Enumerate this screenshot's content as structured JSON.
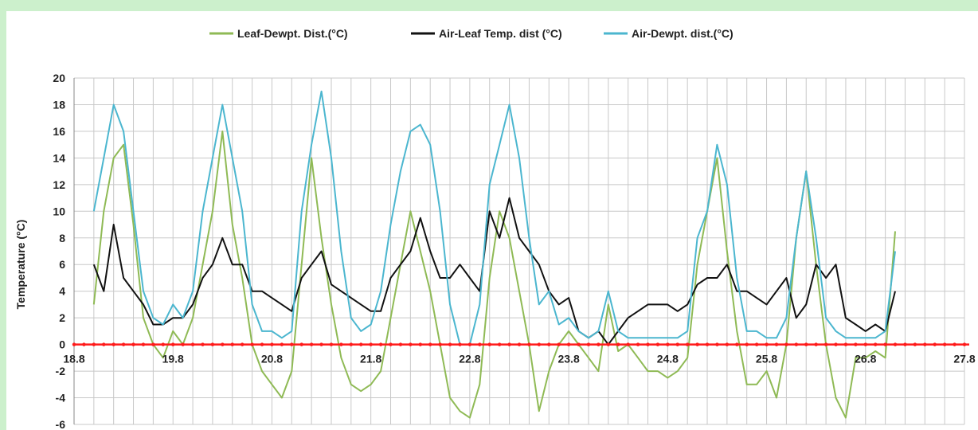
{
  "chart_data": {
    "type": "line",
    "title": "",
    "xlabel": "",
    "ylabel": "Temperature (°C)",
    "ylim": [
      -6,
      20
    ],
    "yticks": [
      "-6",
      "-4",
      "-2",
      "0",
      "2",
      "4",
      "6",
      "8",
      "10",
      "12",
      "14",
      "16",
      "18",
      "20"
    ],
    "xlim": [
      18.8,
      27.8
    ],
    "xticks": [
      {
        "v": 18.8,
        "label": "18.8"
      },
      {
        "v": 19.8,
        "label": "19.8"
      },
      {
        "v": 20.8,
        "label": "20.8"
      },
      {
        "v": 21.8,
        "label": "21.8"
      },
      {
        "v": 22.8,
        "label": "22.8"
      },
      {
        "v": 23.8,
        "label": "23.8"
      },
      {
        "v": 24.8,
        "label": "24.8"
      },
      {
        "v": 25.8,
        "label": "25.8"
      },
      {
        "v": 26.8,
        "label": "26.8"
      },
      {
        "v": 27.8,
        "label": "27.8"
      }
    ],
    "grid": true,
    "legend_position": "top",
    "zero_line_color": "#ff1a1a",
    "series": [
      {
        "name": "Leaf-Dewpt. Dist.(°C)",
        "color": "#8fba55",
        "x": [
          19.0,
          19.1,
          19.2,
          19.3,
          19.4,
          19.5,
          19.6,
          19.7,
          19.8,
          19.9,
          20.0,
          20.1,
          20.2,
          20.3,
          20.4,
          20.5,
          20.6,
          20.7,
          20.8,
          20.9,
          21.0,
          21.1,
          21.2,
          21.3,
          21.4,
          21.5,
          21.6,
          21.7,
          21.8,
          21.9,
          22.0,
          22.1,
          22.2,
          22.3,
          22.4,
          22.5,
          22.6,
          22.7,
          22.8,
          22.9,
          23.0,
          23.1,
          23.2,
          23.3,
          23.4,
          23.5,
          23.6,
          23.7,
          23.8,
          23.9,
          24.0,
          24.1,
          24.2,
          24.3,
          24.4,
          24.5,
          24.6,
          24.7,
          24.8,
          24.9,
          25.0,
          25.1,
          25.2,
          25.3,
          25.4,
          25.5,
          25.6,
          25.7,
          25.8,
          25.9,
          26.0,
          26.1,
          26.2,
          26.3,
          26.4,
          26.5,
          26.6,
          26.7,
          26.8,
          26.9,
          27.0,
          27.1
        ],
        "y": [
          3,
          10,
          14,
          15,
          9,
          2,
          0,
          -1,
          1,
          0,
          2,
          6,
          10,
          16,
          9,
          5,
          0,
          -2,
          -3,
          -4,
          -2,
          6,
          14,
          8,
          3,
          -1,
          -3,
          -3.5,
          -3,
          -2,
          2,
          6,
          10,
          7,
          4,
          0,
          -4,
          -5,
          -5.5,
          -3,
          5,
          10,
          8,
          4,
          0,
          -5,
          -2,
          0,
          1,
          0,
          -1,
          -2,
          3,
          -0.5,
          0,
          -1,
          -2,
          -2,
          -2.5,
          -2,
          -1,
          6,
          10,
          14,
          7,
          1,
          -3,
          -3,
          -2,
          -4,
          0,
          8,
          13,
          6,
          0,
          -4,
          -5.5,
          -1,
          -1,
          -0.5,
          -1,
          8.5
        ]
      },
      {
        "name": "Air-Leaf Temp. dist (°C)",
        "color": "#111111",
        "x": [
          19.0,
          19.1,
          19.2,
          19.3,
          19.4,
          19.5,
          19.6,
          19.7,
          19.8,
          19.9,
          20.0,
          20.1,
          20.2,
          20.3,
          20.4,
          20.5,
          20.6,
          20.7,
          20.8,
          20.9,
          21.0,
          21.1,
          21.2,
          21.3,
          21.4,
          21.5,
          21.6,
          21.7,
          21.8,
          21.9,
          22.0,
          22.1,
          22.2,
          22.3,
          22.4,
          22.5,
          22.6,
          22.7,
          22.8,
          22.9,
          23.0,
          23.1,
          23.2,
          23.3,
          23.4,
          23.5,
          23.6,
          23.7,
          23.8,
          23.9,
          24.0,
          24.1,
          24.2,
          24.3,
          24.4,
          24.5,
          24.6,
          24.7,
          24.8,
          24.9,
          25.0,
          25.1,
          25.2,
          25.3,
          25.4,
          25.5,
          25.6,
          25.7,
          25.8,
          25.9,
          26.0,
          26.1,
          26.2,
          26.3,
          26.4,
          26.5,
          26.6,
          26.7,
          26.8,
          26.9,
          27.0,
          27.1
        ],
        "y": [
          6,
          4,
          9,
          5,
          4,
          3,
          1.5,
          1.5,
          2,
          2,
          3,
          5,
          6,
          8,
          6,
          6,
          4,
          4,
          3.5,
          3,
          2.5,
          5,
          6,
          7,
          4.5,
          4,
          3.5,
          3,
          2.5,
          2.5,
          5,
          6,
          7,
          9.5,
          7,
          5,
          5,
          6,
          5,
          4,
          10,
          8,
          11,
          8,
          7,
          6,
          4,
          3,
          3.5,
          1,
          0.5,
          1,
          0,
          1,
          2,
          2.5,
          3,
          3,
          3,
          2.5,
          3,
          4.5,
          5,
          5,
          6,
          4,
          4,
          3.5,
          3,
          4,
          5,
          2,
          3,
          6,
          5,
          6,
          2,
          1.5,
          1,
          1.5,
          1,
          4
        ]
      },
      {
        "name": "Air-Dewpt. dist.(°C)",
        "color": "#4bb6cf",
        "x": [
          19.0,
          19.1,
          19.2,
          19.3,
          19.4,
          19.5,
          19.6,
          19.7,
          19.8,
          19.9,
          20.0,
          20.1,
          20.2,
          20.3,
          20.4,
          20.5,
          20.6,
          20.7,
          20.8,
          20.9,
          21.0,
          21.1,
          21.2,
          21.3,
          21.4,
          21.5,
          21.6,
          21.7,
          21.8,
          21.9,
          22.0,
          22.1,
          22.2,
          22.3,
          22.4,
          22.5,
          22.6,
          22.7,
          22.8,
          22.9,
          23.0,
          23.1,
          23.2,
          23.3,
          23.4,
          23.5,
          23.6,
          23.7,
          23.8,
          23.9,
          24.0,
          24.1,
          24.2,
          24.3,
          24.4,
          24.5,
          24.6,
          24.7,
          24.8,
          24.9,
          25.0,
          25.1,
          25.2,
          25.3,
          25.4,
          25.5,
          25.6,
          25.7,
          25.8,
          25.9,
          26.0,
          26.1,
          26.2,
          26.3,
          26.4,
          26.5,
          26.6,
          26.7,
          26.8,
          26.9,
          27.0,
          27.1
        ],
        "y": [
          10,
          14,
          18,
          16,
          10,
          4,
          2,
          1.5,
          3,
          2,
          4,
          10,
          14,
          18,
          14,
          10,
          3,
          1,
          1,
          0.5,
          1,
          10,
          15,
          19,
          14,
          7,
          2,
          1,
          1.5,
          4,
          9,
          13,
          16,
          16.5,
          15,
          10,
          3,
          0,
          0,
          3,
          12,
          15,
          18,
          14,
          8,
          3,
          4,
          1.5,
          2,
          1,
          0.5,
          1,
          4,
          1,
          0.5,
          0.5,
          0.5,
          0.5,
          0.5,
          0.5,
          1,
          8,
          10,
          15,
          12,
          5,
          1,
          1,
          0.5,
          0.5,
          2,
          8,
          13,
          8,
          2,
          1,
          0.5,
          0.5,
          0.5,
          0.5,
          1,
          7
        ]
      }
    ]
  }
}
